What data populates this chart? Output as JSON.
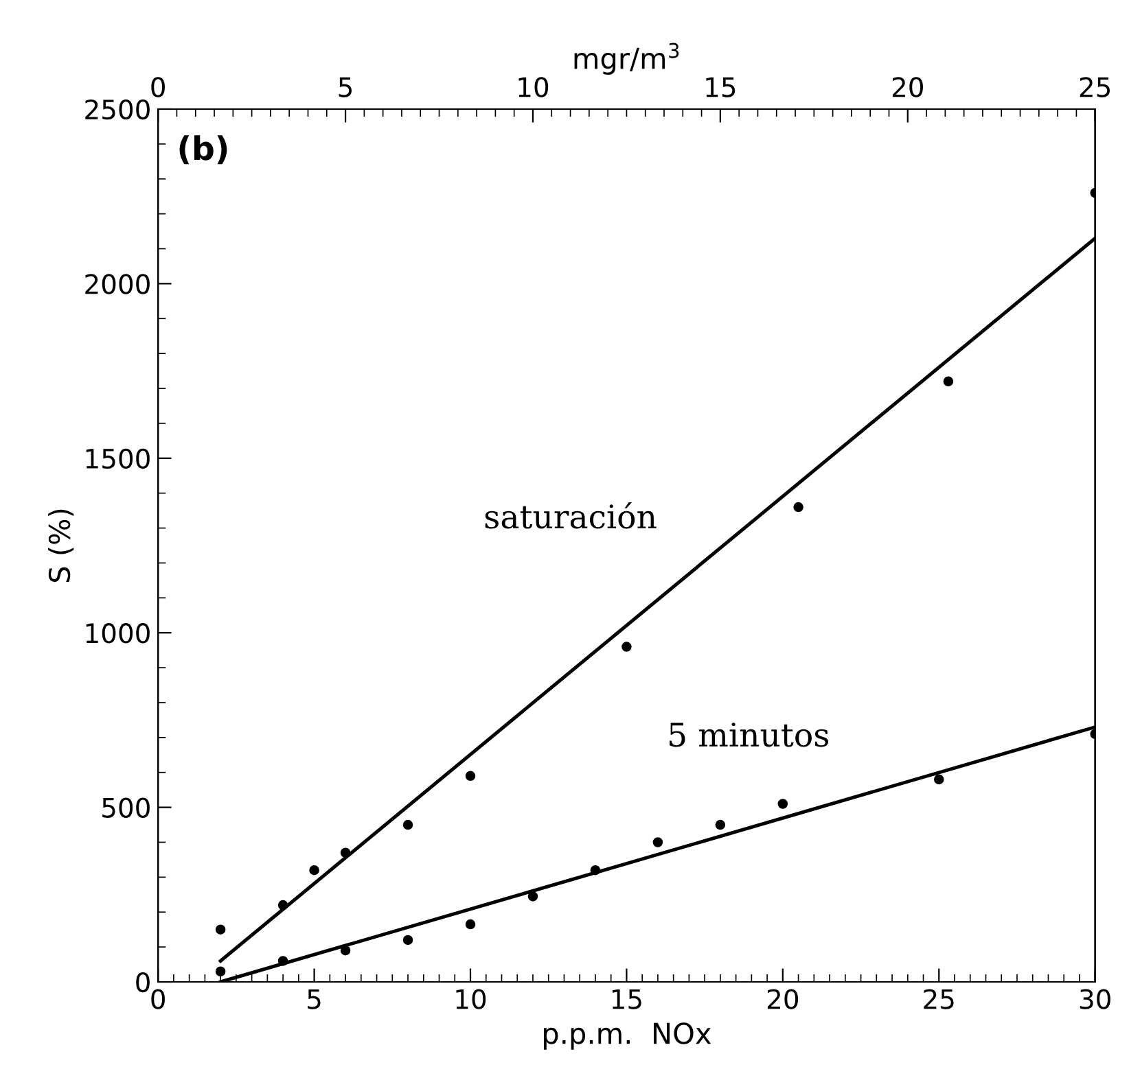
{
  "chart_data": {
    "type": "scatter",
    "xlabel": "p.p.m.  NOx",
    "ylabel": "S (%)",
    "x2label": "mgr/m$^{3}$",
    "xlim": [
      0,
      30
    ],
    "xticks": [
      0,
      5,
      10,
      15,
      20,
      25,
      30
    ],
    "ylim": [
      0,
      2500
    ],
    "yticks": [
      0,
      500,
      1000,
      1500,
      2000,
      2500
    ],
    "x2lim": [
      0,
      25
    ],
    "x2ticks": [
      0,
      5,
      10,
      15,
      20,
      25
    ],
    "grid": false,
    "marker": "circle",
    "annotations": [
      "(b)",
      "saturación",
      "5 minutos"
    ],
    "series": [
      {
        "color": "#000000",
        "x": [
          2,
          4,
          5,
          6,
          8,
          10,
          15,
          20.5,
          25.3,
          30
        ],
        "values": [
          150,
          220,
          320,
          370,
          450,
          590,
          960,
          1360,
          1720,
          2260
        ]
      },
      {
        "type": "line",
        "color": "#000000",
        "marker": "none",
        "line_style": "solid",
        "x": [
          2,
          30
        ],
        "values": [
          60,
          2130
        ]
      },
      {
        "color": "#000000",
        "x": [
          2,
          4,
          6,
          8,
          10,
          12,
          14,
          16,
          18,
          20,
          25,
          30
        ],
        "values": [
          30,
          60,
          90,
          120,
          165,
          245,
          320,
          400,
          450,
          510,
          580,
          710
        ]
      },
      {
        "type": "line",
        "color": "#000000",
        "marker": "none",
        "line_style": "solid",
        "x": [
          2,
          30
        ],
        "values": [
          0,
          730
        ]
      }
    ]
  }
}
